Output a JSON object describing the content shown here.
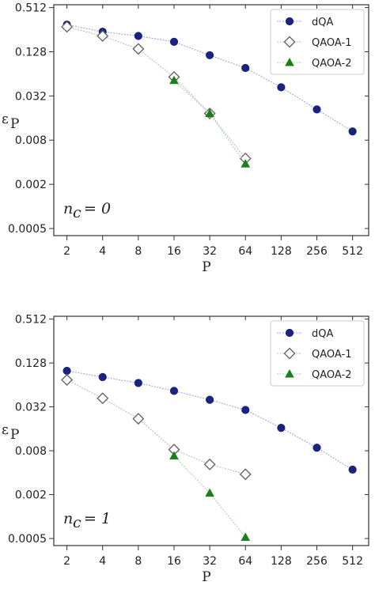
{
  "chart_data": [
    {
      "type": "scatter",
      "log_base": 2,
      "x_scale": "log2",
      "y_scale": "log2",
      "x_ticks": [
        2,
        4,
        8,
        16,
        32,
        64,
        128,
        256,
        512
      ],
      "x_tick_labels": [
        "2",
        "4",
        "8",
        "16",
        "32",
        "64",
        "128",
        "256",
        "512"
      ],
      "y_ticks": [
        0.0005,
        0.002,
        0.008,
        0.032,
        0.128,
        0.512
      ],
      "y_tick_labels": [
        "0.0005",
        "0.002",
        "0.008",
        "0.032",
        "0.128",
        "0.512"
      ],
      "xlim": [
        1.55,
        700
      ],
      "ylim": [
        0.0004,
        0.56
      ],
      "xlabel": "P",
      "ylabel": "ε",
      "ylabel_sub": "P",
      "annotation": {
        "var": "n",
        "sub": "c",
        "rest": " = 0"
      },
      "legend_position": "top-right",
      "grid": false,
      "series": [
        {
          "name": "dQA",
          "marker": "circle",
          "color": "#1a237e",
          "line_color": "#9fa8da",
          "x": [
            2,
            4,
            8,
            16,
            32,
            64,
            128,
            256,
            512
          ],
          "y": [
            0.3,
            0.24,
            0.21,
            0.175,
            0.115,
            0.077,
            0.042,
            0.021,
            0.0105
          ]
        },
        {
          "name": "QAOA-1",
          "marker": "diamond",
          "color": "#666666",
          "line_color": "#bdbdbd",
          "x": [
            2,
            4,
            8,
            16,
            32,
            64
          ],
          "y": [
            0.28,
            0.21,
            0.14,
            0.058,
            0.0185,
            0.0045
          ]
        },
        {
          "name": "QAOA-2",
          "marker": "triangle",
          "color": "#1b7f1b",
          "line_color": "#a5d6a7",
          "x": [
            16,
            32,
            64
          ],
          "y": [
            0.052,
            0.0185,
            0.0038
          ]
        }
      ]
    },
    {
      "type": "scatter",
      "log_base": 2,
      "x_scale": "log2",
      "y_scale": "log2",
      "x_ticks": [
        2,
        4,
        8,
        16,
        32,
        64,
        128,
        256,
        512
      ],
      "x_tick_labels": [
        "2",
        "4",
        "8",
        "16",
        "32",
        "64",
        "128",
        "256",
        "512"
      ],
      "y_ticks": [
        0.0005,
        0.002,
        0.008,
        0.032,
        0.128,
        0.512
      ],
      "y_tick_labels": [
        "0.0005",
        "0.002",
        "0.008",
        "0.032",
        "0.128",
        "0.512"
      ],
      "xlim": [
        1.55,
        700
      ],
      "ylim": [
        0.0004,
        0.56
      ],
      "xlabel": "P",
      "ylabel": "ε",
      "ylabel_sub": "P",
      "annotation": {
        "var": "n",
        "sub": "c",
        "rest": " = 1"
      },
      "legend_position": "top-right",
      "grid": false,
      "series": [
        {
          "name": "dQA",
          "marker": "circle",
          "color": "#1a237e",
          "line_color": "#9fa8da",
          "x": [
            2,
            4,
            8,
            16,
            32,
            64,
            128,
            256,
            512
          ],
          "y": [
            0.1,
            0.082,
            0.068,
            0.053,
            0.04,
            0.029,
            0.0165,
            0.0088,
            0.0044
          ]
        },
        {
          "name": "QAOA-1",
          "marker": "diamond",
          "color": "#666666",
          "line_color": "#bdbdbd",
          "x": [
            2,
            4,
            8,
            16,
            32,
            64
          ],
          "y": [
            0.075,
            0.042,
            0.022,
            0.0083,
            0.0052,
            0.0038
          ]
        },
        {
          "name": "QAOA-2",
          "marker": "triangle",
          "color": "#1b7f1b",
          "line_color": "#a5d6a7",
          "x": [
            16,
            32,
            64
          ],
          "y": [
            0.0068,
            0.0021,
            0.00052
          ]
        }
      ]
    }
  ]
}
